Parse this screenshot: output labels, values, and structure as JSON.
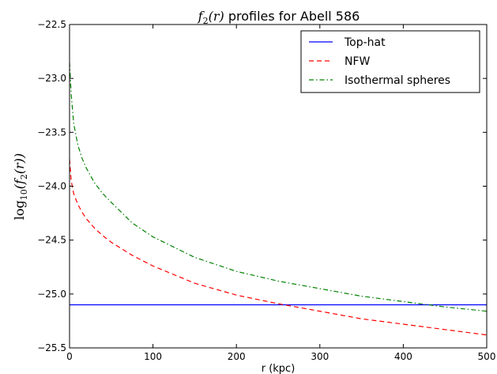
{
  "chart_data": {
    "type": "line",
    "title_math": "f",
    "title_math_sub": "2",
    "title_math_arg": "(r)",
    "title_rest": " profiles for Abell 586",
    "xlabel": "r (kpc)",
    "ylabel_prefix": "log",
    "ylabel_sub": "10",
    "ylabel_inner": "(f",
    "ylabel_inner_sub": "2",
    "ylabel_tail": "(r))",
    "xlim": [
      0,
      500
    ],
    "ylim": [
      -25.5,
      -22.5
    ],
    "xticks": [
      0,
      100,
      200,
      300,
      400,
      500
    ],
    "xtick_labels": [
      "0",
      "100",
      "200",
      "300",
      "400",
      "500"
    ],
    "yticks": [
      -25.5,
      -25.0,
      -24.5,
      -24.0,
      -23.5,
      -23.0,
      -22.5
    ],
    "ytick_labels": [
      "−25.5",
      "−25.0",
      "−24.5",
      "−24.0",
      "−23.5",
      "−23.0",
      "−22.5"
    ],
    "grid": false,
    "legend_position": "top-right",
    "series": [
      {
        "name": "Top-hat",
        "color": "#0000ff",
        "style": "solid",
        "x": [
          0,
          500
        ],
        "y": [
          -25.1,
          -25.1
        ]
      },
      {
        "name": "NFW",
        "color": "#ff0000",
        "style": "dashed",
        "x": [
          0,
          2,
          5,
          10,
          15,
          20,
          30,
          40,
          50,
          75,
          100,
          150,
          200,
          250,
          300,
          350,
          400,
          450,
          500
        ],
        "y": [
          -23.75,
          -23.95,
          -24.07,
          -24.17,
          -24.24,
          -24.3,
          -24.39,
          -24.46,
          -24.52,
          -24.64,
          -24.74,
          -24.9,
          -25.01,
          -25.09,
          -25.16,
          -25.23,
          -25.28,
          -25.33,
          -25.38
        ]
      },
      {
        "name": "Isothermal spheres",
        "color": "#008000",
        "style": "dashdot",
        "x": [
          0,
          2,
          5,
          10,
          15,
          20,
          30,
          40,
          50,
          75,
          100,
          150,
          200,
          250,
          300,
          350,
          400,
          450,
          500
        ],
        "y": [
          -22.85,
          -23.15,
          -23.42,
          -23.62,
          -23.74,
          -23.83,
          -23.97,
          -24.07,
          -24.15,
          -24.34,
          -24.47,
          -24.66,
          -24.79,
          -24.88,
          -24.95,
          -25.02,
          -25.07,
          -25.12,
          -25.16
        ]
      }
    ]
  }
}
